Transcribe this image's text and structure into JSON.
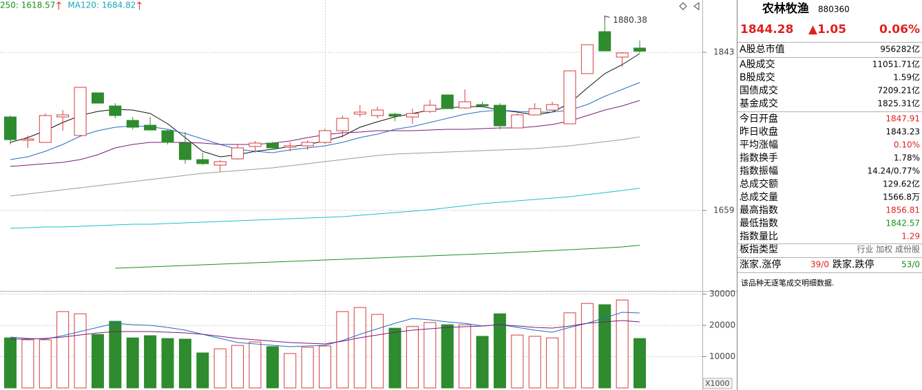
{
  "chart_data": [
    {
      "type": "candlestick",
      "up_color": "#d63a3a",
      "down_color": "#2e8b2e",
      "grid": true,
      "ylim": [
        1567.8,
        1903.8
      ],
      "yticks": [
        1843,
        1659
      ],
      "open": [
        1767.8,
        1740.6,
        1738.2,
        1767.8,
        1746.2,
        1795.8,
        1780.6,
        1763.8,
        1758.2,
        1751.8,
        1737.4,
        1718.2,
        1711.8,
        1719.0,
        1733.4,
        1737.4,
        1732.6,
        1734.2,
        1738.2,
        1751.8,
        1771.0,
        1769.4,
        1771.0,
        1767.8,
        1774.2,
        1793.4,
        1778.2,
        1782.2,
        1781.4,
        1755.0,
        1770.2,
        1775.8,
        1759.8,
        1818.2,
        1867.0,
        1837.4,
        1847.91
      ],
      "high": [
        1769.4,
        1746.2,
        1771.8,
        1775.8,
        1802.2,
        1795.8,
        1783.8,
        1767.8,
        1767.8,
        1753.4,
        1750.2,
        1726.2,
        1717.4,
        1735.8,
        1739.8,
        1739.0,
        1738.2,
        1740.6,
        1754.2,
        1769.4,
        1781.4,
        1779.8,
        1772.6,
        1777.4,
        1787.8,
        1793.4,
        1799.8,
        1785.4,
        1783.8,
        1771.8,
        1783.8,
        1785.4,
        1821.4,
        1851.8,
        1880.38,
        1843.0,
        1856.81
      ],
      "low": [
        1735.8,
        1731.8,
        1738.2,
        1751.8,
        1746.2,
        1783.8,
        1766.2,
        1753.4,
        1751.8,
        1735.8,
        1713.4,
        1711.8,
        1703.8,
        1718.2,
        1726.2,
        1731.0,
        1727.8,
        1729.4,
        1736.6,
        1743.8,
        1767.8,
        1766.2,
        1763.0,
        1759.8,
        1772.6,
        1777.4,
        1777.4,
        1779.0,
        1753.4,
        1755.0,
        1769.4,
        1774.2,
        1759.8,
        1818.2,
        1844.6,
        1826.2,
        1842.57
      ],
      "close": [
        1741.4,
        1742.2,
        1769.4,
        1770.2,
        1802.2,
        1783.8,
        1769.4,
        1755.8,
        1752.6,
        1738.2,
        1718.2,
        1713.4,
        1715.8,
        1731.8,
        1737.4,
        1731.8,
        1734.2,
        1738.2,
        1751.8,
        1766.2,
        1773.4,
        1775.8,
        1768.6,
        1771.8,
        1781.4,
        1777.4,
        1785.4,
        1780.6,
        1757.4,
        1770.2,
        1777.4,
        1782.2,
        1821.4,
        1851.8,
        1844.6,
        1842.2,
        1844.28
      ],
      "annotations": [
        {
          "text": "1880.38"
        }
      ],
      "legend": [
        {
          "text": "250: 1618.57",
          "color": "#1a8f1a"
        },
        {
          "text": "MA120: 1684.82",
          "color": "#17a8b8"
        }
      ],
      "series": [
        {
          "color": "#111111",
          "values": [
            1738.2,
            1743.8,
            1751.8,
            1761.4,
            1769.4,
            1774.2,
            1776.6,
            1775.8,
            1771.8,
            1759.8,
            1743.8,
            1727.8,
            1721.4,
            1723.8,
            1727.8,
            1730.2,
            1733.4,
            1735.8,
            1739.8,
            1745.4,
            1755.8,
            1762.2,
            1767.8,
            1771.8,
            1775.8,
            1778.2,
            1779.8,
            1779.8,
            1775.8,
            1773.4,
            1770.2,
            1773.4,
            1783.8,
            1801.4,
            1818.2,
            1828.6,
            1841.4
          ]
        },
        {
          "color": "#1f6fc0",
          "values": [
            1718.2,
            1721.4,
            1727.8,
            1735.8,
            1745.4,
            1751.8,
            1755.8,
            1757.4,
            1756.6,
            1753.4,
            1748.6,
            1742.2,
            1735.8,
            1730.2,
            1727.8,
            1726.2,
            1729.4,
            1731.8,
            1734.2,
            1738.2,
            1743.8,
            1747.8,
            1753.4,
            1756.6,
            1761.4,
            1766.2,
            1771.0,
            1774.2,
            1775.8,
            1774.2,
            1773.4,
            1773.4,
            1775.8,
            1782.2,
            1791.8,
            1799.8,
            1807.8
          ]
        },
        {
          "color": "#7a1a7a",
          "values": [
            1710.2,
            1711.8,
            1713.4,
            1715.0,
            1718.2,
            1723.8,
            1731.8,
            1735.8,
            1738.2,
            1738.2,
            1738.2,
            1737.4,
            1735.8,
            1735.8,
            1735.8,
            1737.4,
            1739.8,
            1743.8,
            1747.0,
            1749.4,
            1750.2,
            1751.8,
            1751.8,
            1751.8,
            1752.6,
            1753.4,
            1753.4,
            1754.2,
            1755.0,
            1755.0,
            1756.6,
            1759.0,
            1763.0,
            1769.4,
            1775.8,
            1780.6,
            1787.0
          ]
        },
        {
          "color": "#9a9a9a",
          "values": [
            1675.8,
            1678.2,
            1680.6,
            1683.0,
            1685.4,
            1687.8,
            1690.2,
            1692.6,
            1695.0,
            1697.4,
            1699.8,
            1702.2,
            1703.8,
            1705.4,
            1707.0,
            1708.6,
            1711.0,
            1713.4,
            1715.8,
            1718.2,
            1720.6,
            1723.0,
            1724.6,
            1725.4,
            1726.2,
            1727.0,
            1727.8,
            1728.6,
            1729.4,
            1730.2,
            1731.0,
            1732.6,
            1734.2,
            1736.6,
            1739.0,
            1741.4,
            1744.6
          ]
        },
        {
          "color": "#17c0d0",
          "values": [
            1638.2,
            1639.0,
            1639.8,
            1639.8,
            1640.6,
            1641.4,
            1642.2,
            1643.0,
            1643.0,
            1643.8,
            1644.6,
            1645.4,
            1646.2,
            1647.0,
            1647.8,
            1648.6,
            1649.4,
            1650.2,
            1651.0,
            1651.8,
            1653.4,
            1655.0,
            1656.6,
            1658.2,
            1659.8,
            1662.2,
            1664.6,
            1667.0,
            1668.6,
            1670.2,
            1671.8,
            1673.4,
            1675.0,
            1677.4,
            1679.8,
            1682.2,
            1684.82
          ]
        },
        {
          "color": "#1a8f1a",
          "values": [
            null,
            null,
            null,
            null,
            null,
            null,
            1591.8,
            1592.6,
            1593.4,
            1594.2,
            1595.0,
            1595.8,
            1596.6,
            1597.4,
            1598.2,
            1599.0,
            1599.8,
            1600.6,
            1601.4,
            1602.2,
            1603.0,
            1603.8,
            1604.6,
            1605.4,
            1606.2,
            1607.0,
            1607.8,
            1608.6,
            1609.4,
            1610.4,
            1611.4,
            1612.4,
            1613.4,
            1614.4,
            1615.4,
            1616.6,
            1618.57
          ]
        }
      ]
    },
    {
      "type": "bar",
      "grid": true,
      "ylim": [
        0,
        30770
      ],
      "yticks": [
        10000,
        20000,
        30000
      ],
      "unit_label": "X1000",
      "values": [
        16000,
        15400,
        15400,
        24400,
        23700,
        17100,
        21300,
        16000,
        16700,
        15800,
        15600,
        11200,
        12500,
        13600,
        14700,
        13200,
        11000,
        13000,
        13400,
        24400,
        25700,
        23500,
        19100,
        19600,
        20900,
        20200,
        20200,
        16500,
        23700,
        16900,
        16500,
        16000,
        24000,
        27000,
        26600,
        28100,
        15800
      ],
      "series": [
        {
          "color": "#1f6fc0",
          "values": [
            16265,
            15826,
            15606,
            16705,
            18024,
            19342,
            20661,
            20222,
            20002,
            19342,
            18463,
            17144,
            15826,
            14507,
            14067,
            13628,
            13188,
            13408,
            13628,
            15166,
            17144,
            18903,
            20661,
            22200,
            21760,
            21101,
            20661,
            19782,
            20222,
            19342,
            18463,
            17804,
            19342,
            20661,
            22420,
            24178,
            23958
          ]
        },
        {
          "color": "#7a1a7a",
          "values": [
            15606,
            15606,
            15826,
            16265,
            16925,
            17584,
            18024,
            18024,
            18024,
            17804,
            17584,
            17144,
            16485,
            15826,
            15386,
            14946,
            14507,
            14287,
            14067,
            14946,
            16045,
            16925,
            17804,
            18463,
            18903,
            19342,
            19562,
            19782,
            20222,
            19782,
            19342,
            19123,
            19782,
            20661,
            21101,
            21540,
            21101
          ]
        }
      ]
    }
  ],
  "quote_panel": {
    "name": "农林牧渔",
    "code": "880360",
    "price": "1844.28",
    "change": "▲1.05",
    "change_pct": "0.06%",
    "price_color": "#e02020",
    "rows": [
      {
        "label": "A股总市值",
        "value": "956282亿",
        "color": "#000000"
      },
      {
        "label": "A股成交",
        "value": "11051.71亿",
        "color": "#000000"
      },
      {
        "label": "B股成交",
        "value": "1.59亿",
        "color": "#000000"
      },
      {
        "label": "国债成交",
        "value": "7209.21亿",
        "color": "#000000"
      },
      {
        "label": "基金成交",
        "value": "1825.31亿",
        "color": "#000000"
      },
      {
        "label": "今日开盘",
        "value": "1847.91",
        "color": "#e02020"
      },
      {
        "label": "昨日收盘",
        "value": "1843.23",
        "color": "#000000"
      },
      {
        "label": "平均涨幅",
        "value": "0.10%",
        "color": "#e02020"
      },
      {
        "label": "指数换手",
        "value": "1.78%",
        "color": "#000000"
      },
      {
        "label": "指数振幅",
        "value": "14.24/0.77%",
        "color": "#000000"
      },
      {
        "label": "总成交额",
        "value": "129.62亿",
        "color": "#000000"
      },
      {
        "label": "总成交量",
        "value": "1566.8万",
        "color": "#000000"
      },
      {
        "label": "最高指数",
        "value": "1856.81",
        "color": "#e02020"
      },
      {
        "label": "最低指数",
        "value": "1842.57",
        "color": "#1a8f1a"
      },
      {
        "label": "指数量比",
        "value": "1.29",
        "color": "#e02020"
      },
      {
        "label": "板指类型",
        "value": "行业 加权 成份股",
        "color": "#666666"
      }
    ],
    "breadth": {
      "up_label": "涨家.涨停",
      "up_value": "39/0",
      "up_color": "#e02020",
      "down_label": "跌家.跌停",
      "down_value": "53/0",
      "down_color": "#1a8f1a"
    },
    "note": "该品种无逐笔成交明细数据."
  }
}
